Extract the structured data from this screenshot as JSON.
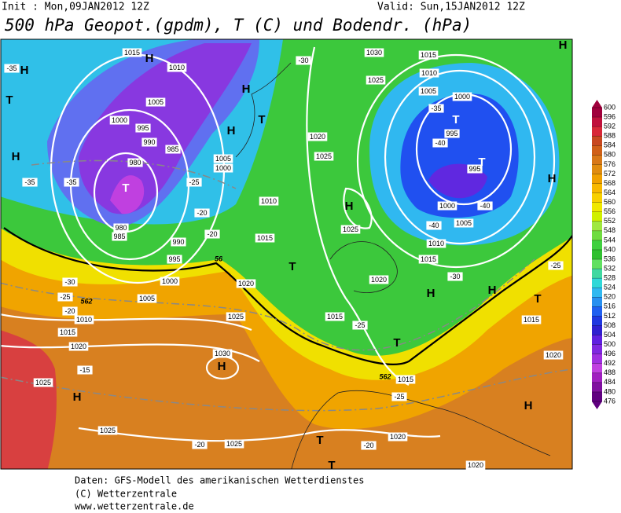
{
  "header": {
    "init": "Init : Mon,09JAN2012 12Z",
    "valid": "Valid: Sun,15JAN2012 12Z",
    "title": "500 hPa Geopot.(gpdm), T (C) und Bodendr. (hPa)"
  },
  "map": {
    "pressure_labels": [
      "1015",
      "1010",
      "1005",
      "1000",
      "995",
      "990",
      "985",
      "980",
      "980",
      "985",
      "990",
      "995",
      "1000",
      "1005",
      "1010",
      "1015",
      "1020",
      "1025",
      "1025",
      "1025",
      "1030",
      "1025",
      "1020",
      "1015",
      "1010",
      "1005",
      "1000",
      "1020",
      "1025",
      "1025",
      "1030",
      "1025",
      "1015",
      "1010",
      "1005",
      "1000",
      "995",
      "995",
      "1000",
      "1005",
      "1010",
      "1015",
      "1020",
      "1015",
      "1015",
      "1015",
      "1020",
      "1020",
      "1020"
    ],
    "temperature_labels": [
      "-35",
      "-30",
      "-35",
      "-40",
      "-35",
      "-35",
      "-25",
      "-20",
      "-20",
      "-30",
      "-25",
      "-20",
      "-25",
      "-25",
      "-20",
      "-20",
      "-15",
      "-25",
      "-30",
      "-40",
      "-40"
    ],
    "centers": [
      "H",
      "H",
      "H",
      "H",
      "H",
      "H",
      "H",
      "H",
      "H",
      "H",
      "H",
      "H",
      "H",
      "T",
      "T",
      "T",
      "T",
      "T",
      "T",
      "T",
      "T",
      "T",
      "T"
    ],
    "height_labels": [
      "562",
      "562",
      "56"
    ]
  },
  "colorbar": {
    "labels": [
      600,
      596,
      592,
      588,
      584,
      580,
      576,
      572,
      568,
      564,
      560,
      556,
      552,
      548,
      544,
      540,
      536,
      532,
      528,
      524,
      520,
      516,
      512,
      508,
      504,
      500,
      496,
      492,
      488,
      484,
      480,
      476
    ],
    "colors": [
      "#a0003c",
      "#c0103c",
      "#d82838",
      "#c84820",
      "#d06018",
      "#d87818",
      "#e08c10",
      "#f0a000",
      "#f8b800",
      "#f8d000",
      "#f0e800",
      "#d0f000",
      "#a0e840",
      "#70dc40",
      "#40d040",
      "#30c030",
      "#60e060",
      "#40d8a0",
      "#30d8d8",
      "#30b8f0",
      "#2890f0",
      "#2060f0",
      "#2038e0",
      "#3020d0",
      "#6020e0",
      "#8028e0",
      "#a030e0",
      "#c040e0",
      "#a020c0",
      "#8010a0",
      "#600080"
    ]
  },
  "footer": {
    "lines": [
      "Daten: GFS-Modell des amerikanischen Wetterdienstes",
      "(C) Wetterzentrale",
      "www.wetterzentrale.de"
    ]
  }
}
